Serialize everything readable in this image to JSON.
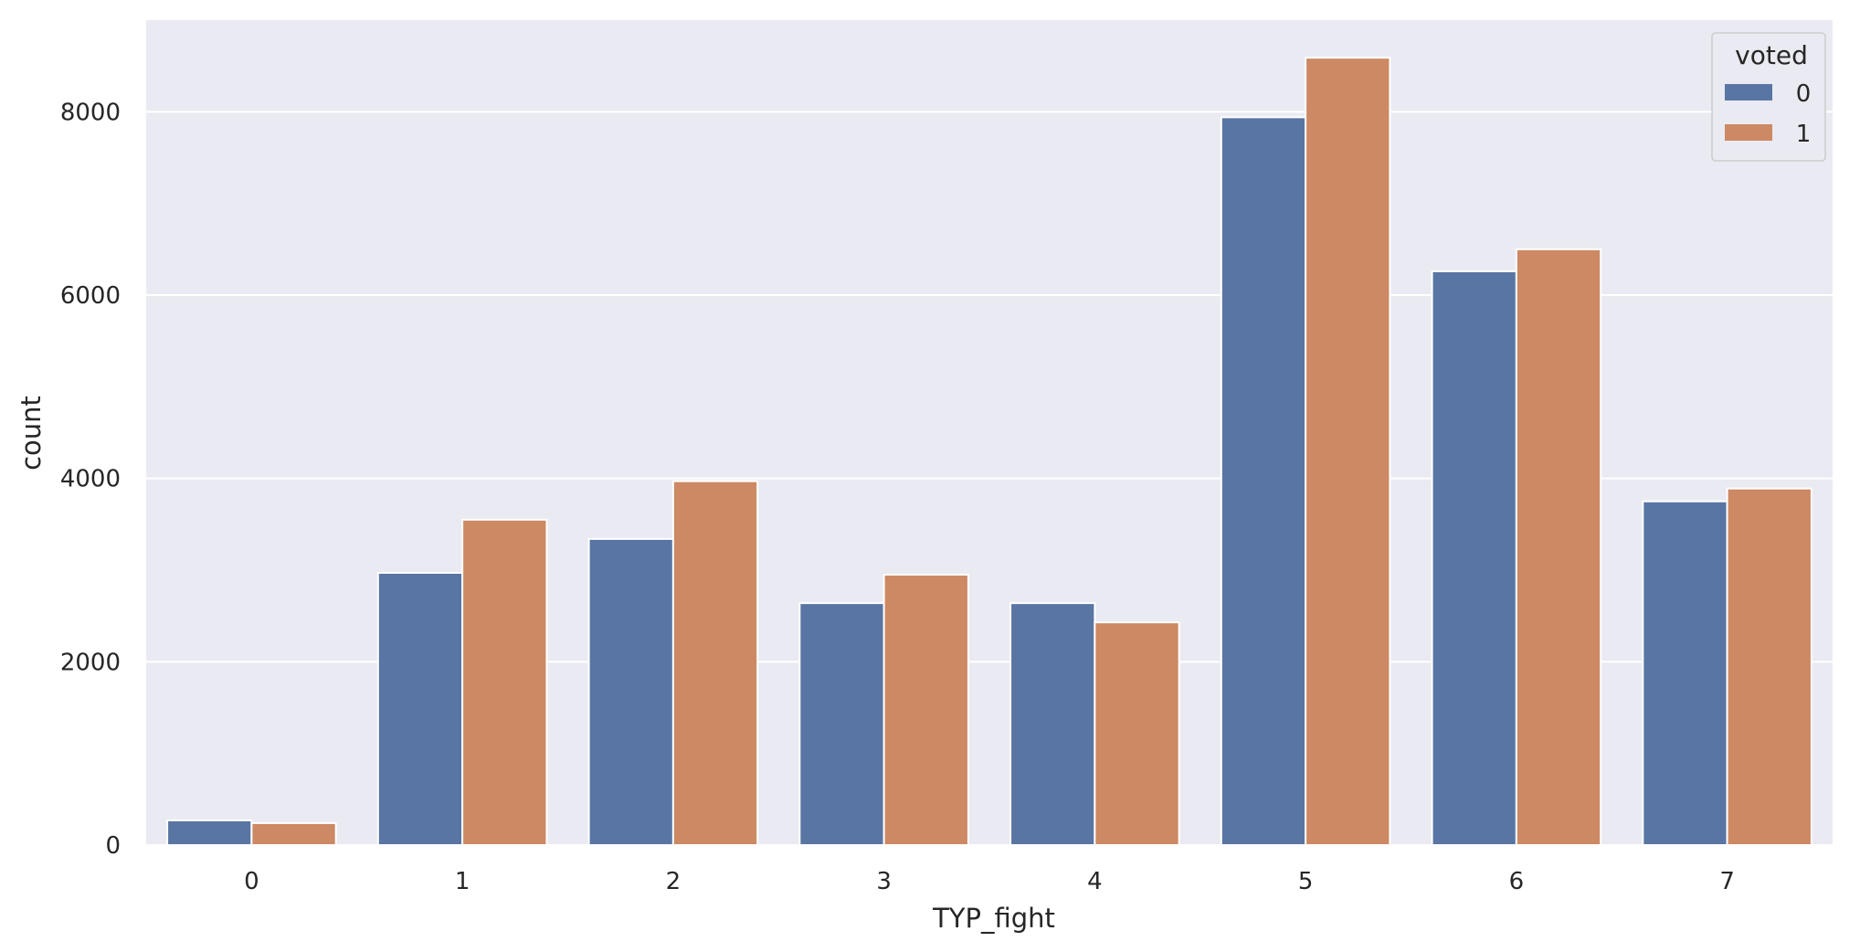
{
  "chart_data": {
    "type": "bar",
    "title": "",
    "xlabel": "TYP_fight",
    "ylabel": "count",
    "categories": [
      "0",
      "1",
      "2",
      "3",
      "4",
      "5",
      "6",
      "7"
    ],
    "series": [
      {
        "name": "0",
        "color": "#5975a4",
        "values": [
          270,
          2970,
          3340,
          2640,
          2640,
          7940,
          6260,
          3750
        ]
      },
      {
        "name": "1",
        "color": "#cc8963",
        "values": [
          240,
          3550,
          3970,
          2950,
          2430,
          8590,
          6500,
          3890
        ]
      }
    ],
    "ylim": [
      0,
      9000
    ],
    "yticks": [
      0,
      2000,
      4000,
      6000,
      8000
    ],
    "grid": true,
    "legend": {
      "title": "voted",
      "placement": "top-right"
    },
    "background_color": "#eaeaf2",
    "grid_color": "#ffffff"
  }
}
